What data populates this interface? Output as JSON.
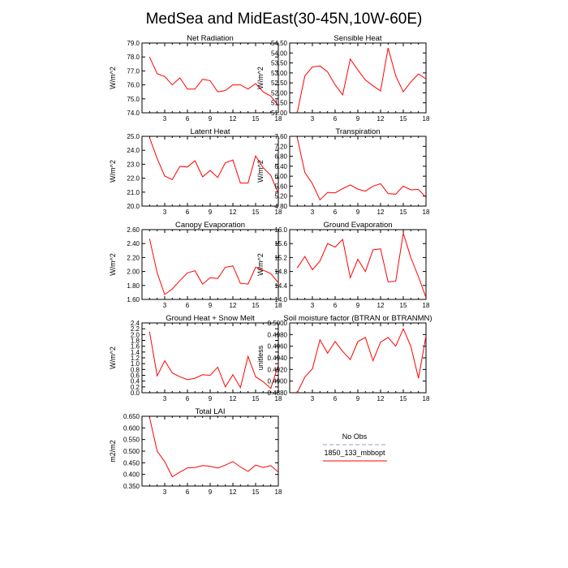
{
  "figure": {
    "title": "MedSea and MidEast(30-45N,10W-60E)"
  },
  "legend": {
    "entries": [
      {
        "label": "No Obs",
        "color": "#9999cc",
        "dashed": true
      },
      {
        "label": "1850_133_mbbopt",
        "color": "#ff0000",
        "dashed": false
      }
    ]
  },
  "chart_data": [
    {
      "type": "line",
      "title": "Net Radiation",
      "ylabel": "W/m^2",
      "x": [
        1,
        2,
        3,
        4,
        5,
        6,
        7,
        8,
        9,
        10,
        11,
        12,
        13,
        14,
        15,
        16,
        17,
        18
      ],
      "xlim": [
        0,
        18
      ],
      "xticks": [
        "3",
        "6",
        "9",
        "12",
        "15",
        "18"
      ],
      "ylim": [
        74.0,
        79.0
      ],
      "yticks": [
        "74.0",
        "75.0",
        "76.0",
        "77.0",
        "78.0",
        "79.0"
      ],
      "series": [
        {
          "color": "#ff0000",
          "values": [
            78.0,
            76.8,
            76.6,
            76.0,
            76.5,
            75.7,
            75.7,
            76.4,
            76.3,
            75.5,
            75.6,
            76.0,
            76.0,
            75.7,
            76.1,
            75.5,
            75.2,
            74.5
          ]
        }
      ]
    },
    {
      "type": "line",
      "title": "Sensible Heat",
      "ylabel": "W/m^2",
      "x": [
        1,
        2,
        3,
        4,
        5,
        6,
        7,
        8,
        9,
        10,
        11,
        12,
        13,
        14,
        15,
        16,
        17,
        18
      ],
      "xlim": [
        0,
        18
      ],
      "xticks": [
        "3",
        "6",
        "9",
        "12",
        "15",
        "18"
      ],
      "ylim": [
        51.0,
        54.5
      ],
      "yticks": [
        "51.00",
        "51.50",
        "52.00",
        "52.50",
        "53.00",
        "53.50",
        "54.00",
        "54.50"
      ],
      "series": [
        {
          "color": "#ff0000",
          "values": [
            51.0,
            52.85,
            53.3,
            53.35,
            53.05,
            52.4,
            51.9,
            53.7,
            53.15,
            52.65,
            52.35,
            52.1,
            54.25,
            52.85,
            52.05,
            52.55,
            52.95,
            52.7
          ]
        }
      ]
    },
    {
      "type": "line",
      "title": "Latent Heat",
      "ylabel": "W/m^2",
      "x": [
        1,
        2,
        3,
        4,
        5,
        6,
        7,
        8,
        9,
        10,
        11,
        12,
        13,
        14,
        15,
        16,
        17,
        18
      ],
      "xlim": [
        0,
        18
      ],
      "xticks": [
        "3",
        "6",
        "9",
        "12",
        "15",
        "18"
      ],
      "ylim": [
        20.0,
        25.0
      ],
      "yticks": [
        "20.0",
        "21.0",
        "22.0",
        "23.0",
        "24.0",
        "25.0"
      ],
      "series": [
        {
          "color": "#ff0000",
          "values": [
            24.9,
            23.4,
            22.15,
            21.9,
            22.85,
            22.8,
            23.25,
            22.1,
            22.55,
            22.05,
            23.1,
            23.3,
            21.65,
            21.65,
            23.6,
            22.75,
            22.2,
            20.9
          ]
        }
      ]
    },
    {
      "type": "line",
      "title": "Transpiration",
      "ylabel": "W/m^2",
      "x": [
        1,
        2,
        3,
        4,
        5,
        6,
        7,
        8,
        9,
        10,
        11,
        12,
        13,
        14,
        15,
        16,
        17,
        18
      ],
      "xlim": [
        0,
        18
      ],
      "xticks": [
        "3",
        "6",
        "9",
        "12",
        "15",
        "18"
      ],
      "ylim": [
        4.8,
        7.6
      ],
      "yticks": [
        "4.80",
        "5.20",
        "5.60",
        "6.00",
        "6.40",
        "6.80",
        "7.20",
        "7.60"
      ],
      "series": [
        {
          "color": "#ff0000",
          "values": [
            7.55,
            6.15,
            5.7,
            5.05,
            5.35,
            5.33,
            5.5,
            5.65,
            5.48,
            5.4,
            5.6,
            5.7,
            5.3,
            5.28,
            5.6,
            5.45,
            5.47,
            5.15
          ]
        }
      ]
    },
    {
      "type": "line",
      "title": "Canopy Evaporation",
      "ylabel": "W/m^2",
      "x": [
        1,
        2,
        3,
        4,
        5,
        6,
        7,
        8,
        9,
        10,
        11,
        12,
        13,
        14,
        15,
        16,
        17,
        18
      ],
      "xlim": [
        0,
        18
      ],
      "xticks": [
        "3",
        "6",
        "9",
        "12",
        "15",
        "18"
      ],
      "ylim": [
        1.6,
        2.6
      ],
      "yticks": [
        "1.60",
        "1.80",
        "2.00",
        "2.20",
        "2.40",
        "2.60"
      ],
      "series": [
        {
          "color": "#ff0000",
          "values": [
            2.47,
            1.98,
            1.67,
            1.75,
            1.87,
            1.98,
            2.01,
            1.82,
            1.91,
            1.9,
            2.06,
            2.08,
            1.83,
            1.82,
            2.06,
            2.02,
            1.97,
            1.84
          ]
        }
      ]
    },
    {
      "type": "line",
      "title": "Ground Evaporation",
      "ylabel": "W/m^2",
      "x": [
        1,
        2,
        3,
        4,
        5,
        6,
        7,
        8,
        9,
        10,
        11,
        12,
        13,
        14,
        15,
        16,
        17,
        18
      ],
      "xlim": [
        0,
        18
      ],
      "xticks": [
        "3",
        "6",
        "9",
        "12",
        "15",
        "18"
      ],
      "ylim": [
        14.0,
        16.0
      ],
      "yticks": [
        "14.0",
        "14.4",
        "14.8",
        "15.2",
        "15.6",
        "16.0"
      ],
      "series": [
        {
          "color": "#ff0000",
          "values": [
            14.9,
            15.23,
            14.85,
            15.1,
            15.6,
            15.5,
            15.72,
            14.62,
            15.15,
            14.8,
            15.42,
            15.45,
            14.5,
            14.52,
            15.9,
            15.2,
            14.65,
            14.05
          ]
        }
      ]
    },
    {
      "type": "line",
      "title": "Ground Heat + Snow Melt",
      "ylabel": "W/m^2",
      "x": [
        1,
        2,
        3,
        4,
        5,
        6,
        7,
        8,
        9,
        10,
        11,
        12,
        13,
        14,
        15,
        16,
        17,
        18
      ],
      "xlim": [
        0,
        18
      ],
      "xticks": [
        "3",
        "6",
        "9",
        "12",
        "15",
        "18"
      ],
      "ylim": [
        0.0,
        2.4
      ],
      "yticks": [
        "0.0",
        "0.2",
        "0.4",
        "0.6",
        "0.8",
        "1.0",
        "1.2",
        "1.4",
        "1.6",
        "1.8",
        "2.0",
        "2.2",
        "2.4"
      ],
      "series": [
        {
          "color": "#ff0000",
          "values": [
            2.1,
            0.58,
            1.1,
            0.68,
            0.55,
            0.45,
            0.5,
            0.62,
            0.6,
            0.88,
            0.2,
            0.62,
            0.18,
            1.25,
            0.55,
            0.38,
            0.15,
            0.95
          ]
        }
      ]
    },
    {
      "type": "line",
      "title": "Soil moisture factor (BTRAN or BTRANMN)",
      "ylabel": "unitless",
      "x": [
        1,
        2,
        3,
        4,
        5,
        6,
        7,
        8,
        9,
        10,
        11,
        12,
        13,
        14,
        15,
        16,
        17,
        18
      ],
      "xlim": [
        0,
        18
      ],
      "xticks": [
        "3",
        "6",
        "9",
        "12",
        "15",
        "18"
      ],
      "ylim": [
        0.488,
        0.5
      ],
      "yticks": [
        "0.4880",
        "0.4900",
        "0.4920",
        "0.4940",
        "0.4960",
        "0.4980",
        "0.5000"
      ],
      "series": [
        {
          "color": "#ff0000",
          "values": [
            0.488,
            0.4907,
            0.4921,
            0.4971,
            0.4948,
            0.4968,
            0.4951,
            0.4937,
            0.4968,
            0.4975,
            0.4935,
            0.4967,
            0.4975,
            0.496,
            0.499,
            0.496,
            0.4905,
            0.4978
          ]
        }
      ]
    },
    {
      "type": "line",
      "title": "Total LAI",
      "ylabel": "m2/m2",
      "x": [
        1,
        2,
        3,
        4,
        5,
        6,
        7,
        8,
        9,
        10,
        11,
        12,
        13,
        14,
        15,
        16,
        17,
        18
      ],
      "xlim": [
        0,
        18
      ],
      "xticks": [
        "3",
        "6",
        "9",
        "12",
        "15",
        "18"
      ],
      "ylim": [
        0.35,
        0.65
      ],
      "yticks": [
        "0.350",
        "0.400",
        "0.450",
        "0.500",
        "0.550",
        "0.600",
        "0.650"
      ],
      "series": [
        {
          "color": "#ff0000",
          "values": [
            0.645,
            0.5,
            0.455,
            0.39,
            0.41,
            0.428,
            0.43,
            0.438,
            0.435,
            0.427,
            0.44,
            0.455,
            0.432,
            0.413,
            0.44,
            0.43,
            0.438,
            0.41
          ]
        }
      ]
    }
  ]
}
